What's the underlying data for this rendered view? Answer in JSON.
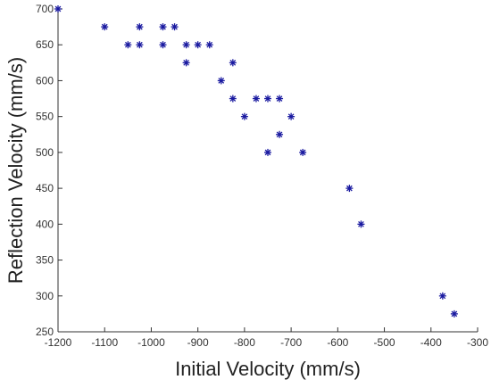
{
  "chart_data": {
    "type": "scatter",
    "xlabel": "Initial Velocity (mm/s)",
    "ylabel": "Reflection Velocity (mm/s)",
    "xlim": [
      -1200,
      -300
    ],
    "ylim": [
      250,
      700
    ],
    "xticks": [
      "-1200",
      "-1100",
      "-1000",
      "-900",
      "-800",
      "-700",
      "-600",
      "-500",
      "-400",
      "-300"
    ],
    "yticks": [
      "250",
      "300",
      "350",
      "400",
      "450",
      "500",
      "550",
      "600",
      "650",
      "700"
    ],
    "marker": "asterisk",
    "color": "#1a1aa0",
    "series": [
      {
        "x": [
          -1200,
          -1100,
          -1050,
          -1025,
          -1025,
          -975,
          -975,
          -950,
          -925,
          -925,
          -900,
          -875,
          -850,
          -825,
          -825,
          -800,
          -775,
          -750,
          -750,
          -725,
          -725,
          -700,
          -675,
          -575,
          -550,
          -375,
          -350
        ],
        "y": [
          700,
          675,
          650,
          675,
          650,
          675,
          650,
          675,
          650,
          625,
          650,
          650,
          600,
          625,
          575,
          550,
          575,
          575,
          500,
          575,
          525,
          550,
          500,
          450,
          400,
          300,
          275
        ]
      }
    ]
  }
}
